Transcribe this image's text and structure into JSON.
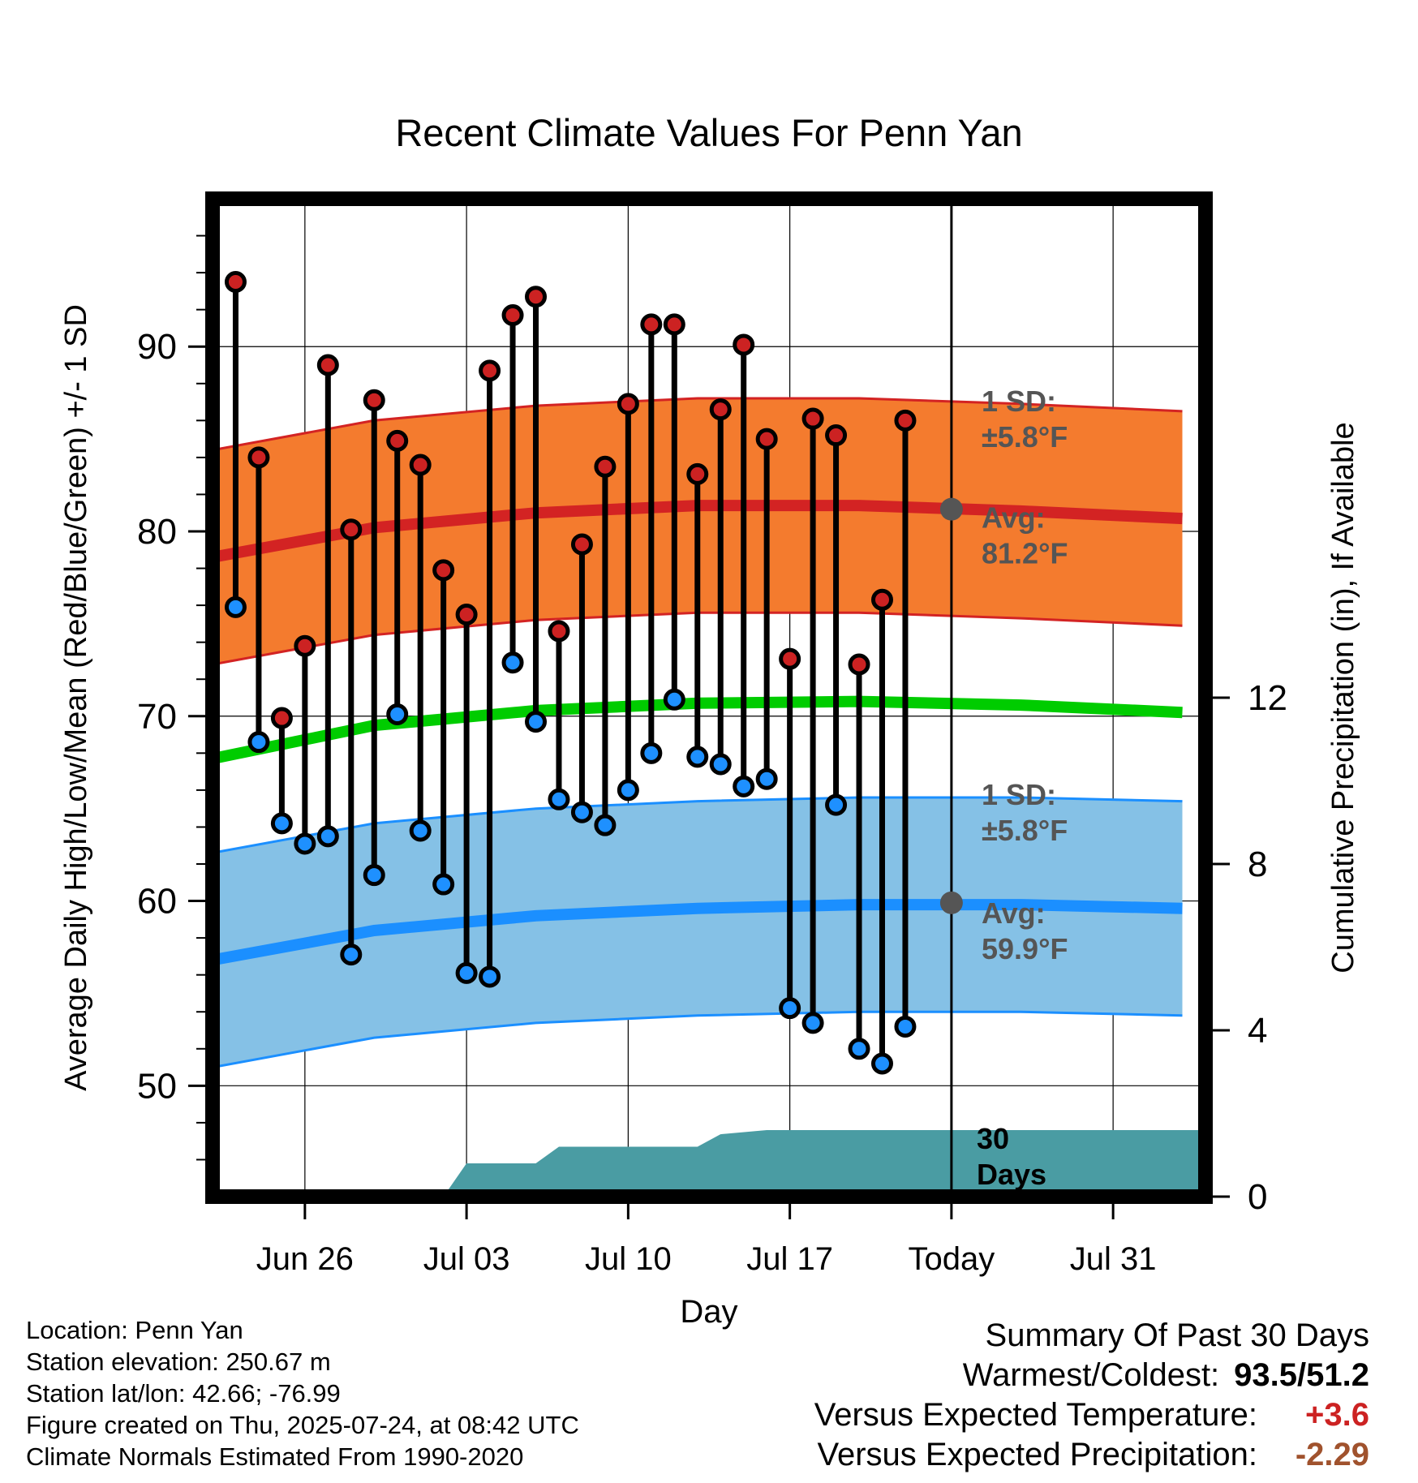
{
  "chart_data": {
    "type": "line",
    "title": "Recent Climate Values For Penn Yan",
    "xlabel": "Day",
    "ylabel": "Average Daily High/Low/Mean (Red/Blue/Green) +/- 1 SD",
    "y2label": "Cumulative Precipitation (in), If Available",
    "ylim": [
      44,
      98
    ],
    "y2lim": [
      0,
      24
    ],
    "yticks": [
      50,
      60,
      70,
      80,
      90
    ],
    "y2ticks": [
      0,
      4,
      8,
      12
    ],
    "xlim": [
      "2025-06-22",
      "2025-08-04"
    ],
    "x_tick_labels": [
      "Jun 26",
      "Jul 03",
      "Jul 10",
      "Jul 17",
      "Today",
      "Jul 31"
    ],
    "x_tick_dates": [
      "2025-06-26",
      "2025-07-03",
      "2025-07-10",
      "2025-07-17",
      "2025-07-24",
      "2025-07-31"
    ],
    "today": "2025-07-24",
    "grid": true,
    "daily_observations": {
      "dates": [
        "2025-06-23",
        "2025-06-24",
        "2025-06-25",
        "2025-06-26",
        "2025-06-27",
        "2025-06-28",
        "2025-06-29",
        "2025-06-30",
        "2025-07-01",
        "2025-07-02",
        "2025-07-03",
        "2025-07-04",
        "2025-07-05",
        "2025-07-06",
        "2025-07-07",
        "2025-07-08",
        "2025-07-09",
        "2025-07-10",
        "2025-07-11",
        "2025-07-12",
        "2025-07-13",
        "2025-07-14",
        "2025-07-15",
        "2025-07-16",
        "2025-07-17",
        "2025-07-18",
        "2025-07-19",
        "2025-07-20",
        "2025-07-21",
        "2025-07-22",
        "2025-07-23"
      ],
      "high": [
        93.5,
        84.0,
        69.9,
        73.8,
        89.0,
        80.1,
        87.1,
        84.9,
        83.6,
        77.9,
        75.5,
        88.7,
        91.7,
        92.7,
        74.6,
        79.3,
        83.5,
        86.9,
        91.2,
        91.2,
        83.1,
        86.6,
        90.1,
        85.0,
        73.1,
        86.1,
        85.2,
        72.8,
        76.3,
        86.0,
        null
      ],
      "low": [
        75.9,
        68.6,
        64.2,
        63.1,
        63.5,
        57.1,
        61.4,
        70.1,
        63.8,
        60.9,
        56.1,
        55.9,
        72.9,
        69.7,
        65.5,
        64.8,
        64.1,
        66.0,
        68.0,
        70.9,
        67.8,
        67.4,
        66.2,
        66.6,
        54.2,
        53.4,
        65.2,
        52.0,
        51.2,
        53.2,
        null
      ]
    },
    "normals": {
      "dates": [
        "2025-06-22",
        "2025-06-29",
        "2025-07-06",
        "2025-07-13",
        "2025-07-20",
        "2025-07-27",
        "2025-08-03"
      ],
      "avg_high": [
        78.6,
        80.2,
        81.0,
        81.4,
        81.4,
        81.1,
        80.7
      ],
      "avg_low": [
        56.8,
        58.4,
        59.2,
        59.6,
        59.8,
        59.8,
        59.6
      ],
      "avg_mean": [
        67.7,
        69.5,
        70.3,
        70.7,
        70.8,
        70.6,
        70.2
      ],
      "sd": 5.8
    },
    "cumulative_precipitation": {
      "dates": [
        "2025-06-22",
        "2025-07-01",
        "2025-07-02",
        "2025-07-03",
        "2025-07-06",
        "2025-07-07",
        "2025-07-13",
        "2025-07-14",
        "2025-07-16",
        "2025-08-04"
      ],
      "values": [
        0,
        0,
        0,
        0.8,
        0.8,
        1.2,
        1.2,
        1.5,
        1.6,
        1.6
      ]
    },
    "annotations": {
      "high_sd_label": "1 SD:",
      "high_sd_value": "±5.8°F",
      "high_avg_label": "Avg:",
      "high_avg_value": "81.2°F",
      "low_sd_label": "1 SD:",
      "low_sd_value": "±5.8°F",
      "low_avg_label": "Avg:",
      "low_avg_value": "59.9°F",
      "days_label_1": "30",
      "days_label_2": "Days",
      "high_avg_marker": 81.2,
      "low_avg_marker": 59.9
    },
    "colors": {
      "high_band": "#f47b2e",
      "high_line": "#d32323",
      "low_band": "#85c1e6",
      "low_line": "#1b8fff",
      "mean_line": "#00cc00",
      "precip": "#4a9ca3",
      "high_dot": "#cc2222",
      "low_dot": "#1e90ff",
      "annotation_text": "#555555"
    }
  },
  "footer": {
    "location": "Location: Penn Yan",
    "elevation": "Station elevation: 250.67 m",
    "latlon": "Station lat/lon: 42.66; -76.99",
    "created": "Figure created on Thu, 2025-07-24, at 08:42 UTC",
    "normals": "Climate Normals Estimated From 1990-2020"
  },
  "summary": {
    "title": "Summary Of Past 30 Days",
    "warmest_label": "Warmest/Coldest:",
    "warmest_value": "93.5/51.2",
    "temp_label": "Versus Expected Temperature:",
    "temp_value": "+3.6",
    "temp_color": "#cc2222",
    "precip_label": "Versus Expected Precipitation:",
    "precip_value": "-2.29",
    "precip_color": "#a0522d"
  }
}
